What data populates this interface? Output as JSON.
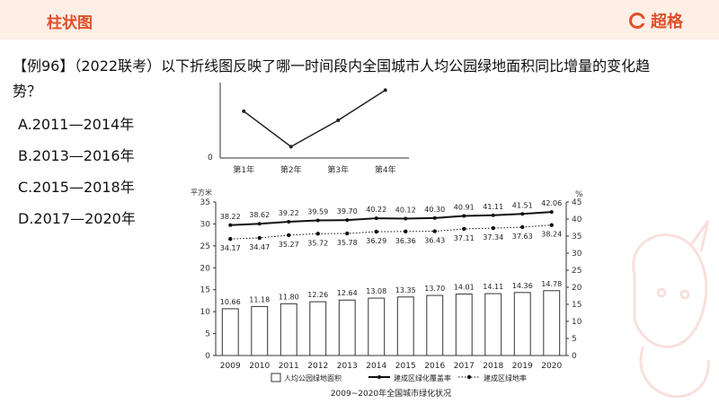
{
  "header": {
    "title": "柱状图",
    "brand": "超格",
    "accent": "#e0502a",
    "background": "#fdeee6"
  },
  "question": {
    "text": "【例96】（2022联考）以下折线图反映了哪一时间段内全国城市人均公园绿地面积同比增量的变化趋势？"
  },
  "options": [
    {
      "label": "A.2011—2014年"
    },
    {
      "label": "B.2013—2016年"
    },
    {
      "label": "C.2015—2018年"
    },
    {
      "label": "D.2017—2020年"
    }
  ],
  "chart_data": [
    {
      "type": "line",
      "categories": [
        "第1年",
        "第2年",
        "第3年",
        "第4年"
      ],
      "values": [
        0.62,
        0.15,
        0.5,
        0.9
      ],
      "origin_label": "0",
      "y_ticks_shown": false
    },
    {
      "type": "bar",
      "title": "2009~2020年全国城市绿化状况",
      "ylabel_left": "平方米",
      "ylabel_right": "%",
      "categories": [
        "2009",
        "2010",
        "2011",
        "2012",
        "2013",
        "2014",
        "2015",
        "2016",
        "2017",
        "2018",
        "2019",
        "2020"
      ],
      "left_ticks": [
        "0",
        "5",
        "10",
        "15",
        "20",
        "25",
        "30",
        "35"
      ],
      "right_ticks": [
        "0",
        "5",
        "10",
        "15",
        "20",
        "25",
        "30",
        "35",
        "40",
        "45"
      ],
      "left_ylim": [
        0,
        35
      ],
      "right_ylim": [
        0,
        45
      ],
      "series": [
        {
          "name": "人均公园绿地面积",
          "axis": "left",
          "kind": "bar",
          "labels": [
            "10.66",
            "11.18",
            "11.80",
            "12.26",
            "12.64",
            "13.08",
            "13.35",
            "13.70",
            "14.01",
            "14.11",
            "14.36",
            "14.78"
          ],
          "values": [
            10.66,
            11.18,
            11.8,
            12.26,
            12.64,
            13.08,
            13.35,
            13.7,
            14.01,
            14.11,
            14.36,
            14.78
          ]
        },
        {
          "name": "建成区绿化覆盖率",
          "axis": "right",
          "kind": "line",
          "labels": [
            "38.22",
            "38.62",
            "39.22",
            "39.59",
            "39.70",
            "40.22",
            "40.12",
            "40.30",
            "40.91",
            "41.11",
            "41.51",
            "42.06"
          ],
          "values": [
            38.22,
            38.62,
            39.22,
            39.59,
            39.7,
            40.22,
            40.12,
            40.3,
            40.91,
            41.11,
            41.51,
            42.06
          ]
        },
        {
          "name": "建成区绿地率",
          "axis": "right",
          "kind": "dotted-line",
          "labels": [
            "34.17",
            "34.47",
            "35.27",
            "35.72",
            "35.78",
            "36.29",
            "36.36",
            "36.43",
            "37.11",
            "37.34",
            "37.63",
            "38.24"
          ],
          "values": [
            34.17,
            34.47,
            35.27,
            35.72,
            35.78,
            36.29,
            36.36,
            36.43,
            37.11,
            37.34,
            37.63,
            38.24
          ]
        }
      ]
    }
  ]
}
